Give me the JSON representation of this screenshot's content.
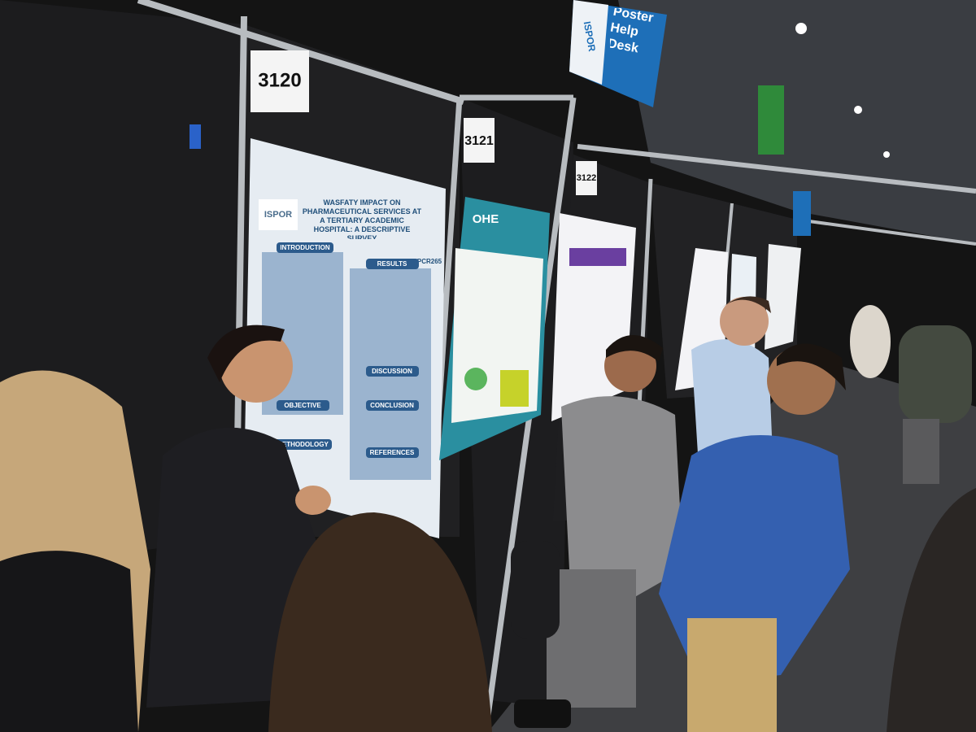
{
  "signs": {
    "help_desk": {
      "logo": "ISPOR",
      "label": "Poster Help Desk"
    }
  },
  "boards": [
    {
      "number": "3120"
    },
    {
      "number": "3121"
    },
    {
      "number": "3122"
    }
  ],
  "posters": [
    {
      "logo": "ISPOR",
      "title": "WASFATY IMPACT ON PHARMACEUTICAL SERVICES AT A TERTIARY ACADEMIC HOSPITAL: A DESCRIPTIVE SURVEY",
      "code": "PCR265",
      "sections": [
        "INTRODUCTION",
        "RESULTS",
        "OBJECTIVE",
        "DISCUSSION",
        "METHODOLOGY",
        "CONCLUSION",
        "REFERENCES"
      ]
    },
    {
      "logo": "OHE"
    }
  ]
}
